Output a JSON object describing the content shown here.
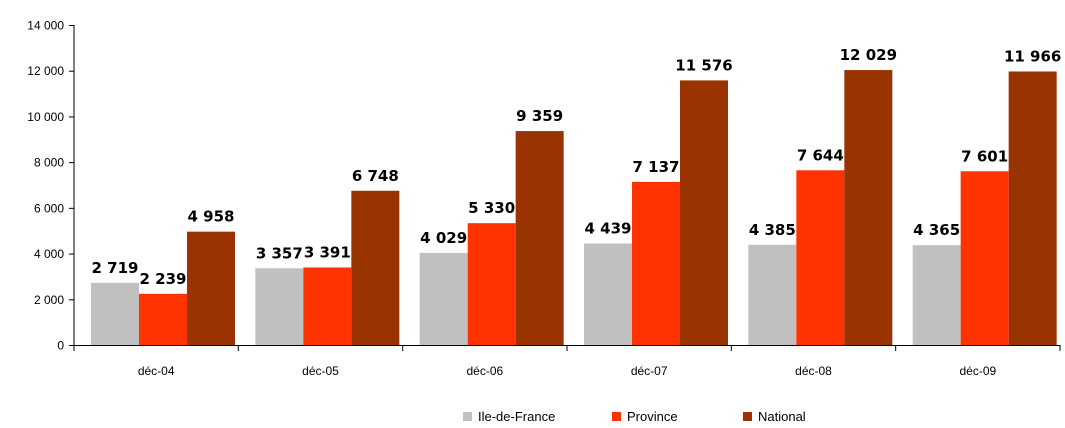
{
  "chart_data": {
    "type": "bar",
    "title": "",
    "xlabel": "",
    "ylabel": "",
    "categories": [
      "déc-04",
      "déc-05",
      "déc-06",
      "déc-07",
      "déc-08",
      "déc-09"
    ],
    "series": [
      {
        "name": "Ile-de-France",
        "color": "#c0c0c0",
        "values": [
          2719,
          3357,
          4029,
          4439,
          4385,
          4365
        ],
        "labels": [
          "2 719",
          "3 357",
          "4 029",
          "4 439",
          "4 385",
          "4 365"
        ]
      },
      {
        "name": "Province",
        "color": "#ff3300",
        "values": [
          2239,
          3391,
          5330,
          7137,
          7644,
          7601
        ],
        "labels": [
          "2 239",
          "3 391",
          "5 330",
          "7 137",
          "7 644",
          "7 601"
        ]
      },
      {
        "name": "National",
        "color": "#993300",
        "values": [
          4958,
          6748,
          9359,
          11576,
          12029,
          11966
        ],
        "labels": [
          "4 958",
          "6 748",
          "9 359",
          "11 576",
          "12 029",
          "11 966"
        ]
      }
    ],
    "ylim": [
      0,
      14000
    ],
    "yticks": [
      0,
      2000,
      4000,
      6000,
      8000,
      10000,
      12000,
      14000
    ],
    "ytick_labels": [
      "0",
      "2 000",
      "4 000",
      "6 000",
      "8 000",
      "10 000",
      "12 000",
      "14 000"
    ],
    "grid": false,
    "legend_position": "bottom-right"
  }
}
